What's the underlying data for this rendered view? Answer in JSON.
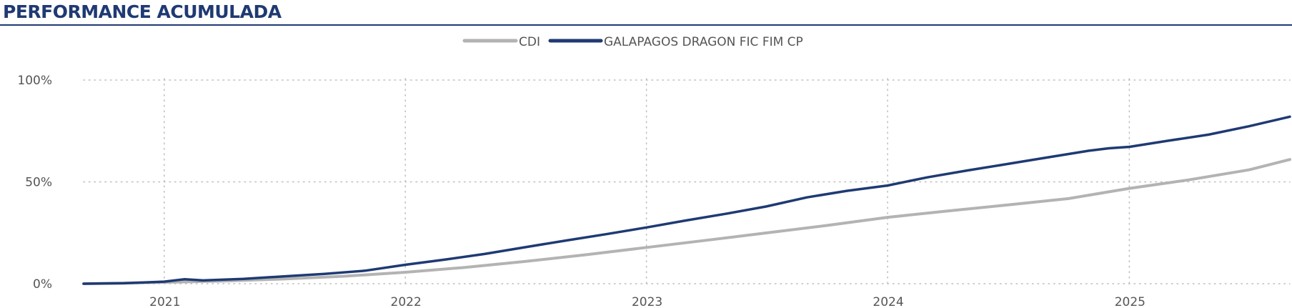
{
  "header": {
    "title": "PERFORMANCE ACUMULADA"
  },
  "colors": {
    "accent": "#1f3a73",
    "cdi": "#b3b3b3",
    "fund": "#1f3a73",
    "grid": "#bdbdbd",
    "text": "#555555"
  },
  "chart_data": {
    "type": "line",
    "legend_position": "top-center",
    "grid": true,
    "x_axis": {
      "range": [
        "2020-09-01",
        "2025-09-01"
      ],
      "ticks": [
        "2021",
        "2022",
        "2023",
        "2024",
        "2025"
      ]
    },
    "y_axis": {
      "range": [
        0,
        100
      ],
      "ticks": [
        "0%",
        "50%",
        "100%"
      ]
    },
    "series": [
      {
        "name": "CDI",
        "points": [
          [
            "2020-09-01",
            0
          ],
          [
            "2021-01-01",
            0.7
          ],
          [
            "2021-04-01",
            1.3
          ],
          [
            "2021-07-01",
            2.3
          ],
          [
            "2021-10-01",
            3.7
          ],
          [
            "2022-01-01",
            5.6
          ],
          [
            "2022-04-01",
            8.0
          ],
          [
            "2022-07-01",
            10.9
          ],
          [
            "2022-10-01",
            14.2
          ],
          [
            "2023-01-01",
            17.8
          ],
          [
            "2023-04-01",
            21.3
          ],
          [
            "2023-07-01",
            24.9
          ],
          [
            "2023-10-01",
            28.6
          ],
          [
            "2024-01-01",
            32.6
          ],
          [
            "2024-04-01",
            35.7
          ],
          [
            "2024-07-01",
            38.7
          ],
          [
            "2024-10-01",
            41.8
          ],
          [
            "2025-01-01",
            46.8
          ],
          [
            "2025-04-01",
            51.0
          ],
          [
            "2025-07-01",
            55.9
          ],
          [
            "2025-09-01",
            61.0
          ]
        ]
      },
      {
        "name": "GALAPAGOS DRAGON FIC FIM CP",
        "points": [
          [
            "2020-09-01",
            0
          ],
          [
            "2020-11-01",
            0.2
          ],
          [
            "2021-01-01",
            1.0
          ],
          [
            "2021-02-01",
            2.2
          ],
          [
            "2021-03-01",
            1.6
          ],
          [
            "2021-05-01",
            2.4
          ],
          [
            "2021-07-01",
            3.6
          ],
          [
            "2021-09-01",
            4.8
          ],
          [
            "2021-11-01",
            6.4
          ],
          [
            "2022-01-01",
            9.3
          ],
          [
            "2022-03-01",
            11.8
          ],
          [
            "2022-05-01",
            14.6
          ],
          [
            "2022-07-01",
            17.9
          ],
          [
            "2022-09-01",
            21.2
          ],
          [
            "2022-11-01",
            24.3
          ],
          [
            "2023-01-01",
            27.6
          ],
          [
            "2023-03-01",
            31.0
          ],
          [
            "2023-05-01",
            34.3
          ],
          [
            "2023-07-01",
            37.9
          ],
          [
            "2023-09-01",
            42.4
          ],
          [
            "2023-11-01",
            45.6
          ],
          [
            "2024-01-01",
            48.2
          ],
          [
            "2024-03-01",
            52.2
          ],
          [
            "2024-05-01",
            55.6
          ],
          [
            "2024-07-01",
            58.8
          ],
          [
            "2024-09-01",
            62.1
          ],
          [
            "2024-11-01",
            65.3
          ],
          [
            "2024-12-01",
            66.5
          ],
          [
            "2025-01-01",
            67.2
          ],
          [
            "2025-03-01",
            70.2
          ],
          [
            "2025-05-01",
            73.2
          ],
          [
            "2025-07-01",
            77.3
          ],
          [
            "2025-09-01",
            82.0
          ]
        ]
      }
    ]
  }
}
